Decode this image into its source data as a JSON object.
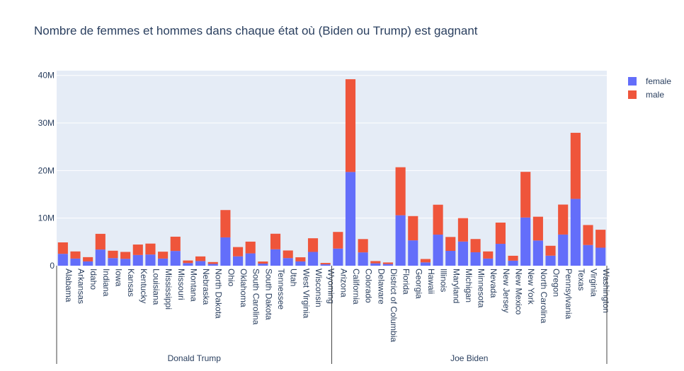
{
  "chart_data": {
    "type": "bar",
    "barmode": "stack",
    "title": "Nombre de femmes et hommes dans chaque état où (Biden ou Trump) est gagnant",
    "xlabel": "",
    "ylabel": "",
    "ylim": [
      0,
      41000000
    ],
    "y_ticks": [
      {
        "value": 0,
        "label": "0"
      },
      {
        "value": 10000000,
        "label": "10M"
      },
      {
        "value": 20000000,
        "label": "20M"
      },
      {
        "value": 30000000,
        "label": "30M"
      },
      {
        "value": 40000000,
        "label": "40M"
      }
    ],
    "grid": true,
    "legend_position": "top-right",
    "groups": [
      {
        "label": "Donald Trump",
        "count": 22
      },
      {
        "label": "Joe Biden",
        "count": 22
      }
    ],
    "categories": [
      "Alabama",
      "Arkansas",
      "Idaho",
      "Indiana",
      "Iowa",
      "Kansas",
      "Kentucky",
      "Louisiana",
      "Mississippi",
      "Missouri",
      "Montana",
      "Nebraska",
      "North Dakota",
      "Ohio",
      "Oklahoma",
      "South Carolina",
      "South Dakota",
      "Tennessee",
      "Utah",
      "West Virginia",
      "Wisconsin",
      "Wyoming",
      "Arizona",
      "California",
      "Colorado",
      "Delaware",
      "District of Columbia",
      "Florida",
      "Georgia",
      "Hawaii",
      "Illinois",
      "Maryland",
      "Michigan",
      "Minnesota",
      "Nevada",
      "New Jersey",
      "New Mexico",
      "New York",
      "North Carolina",
      "Oregon",
      "Pennsylvania",
      "Texas",
      "Virginia",
      "Washington"
    ],
    "series": [
      {
        "name": "female",
        "color": "#636efa",
        "values": [
          2500000,
          1500000,
          900000,
          3400000,
          1600000,
          1450000,
          2250000,
          2350000,
          1500000,
          3100000,
          550000,
          980000,
          380000,
          5950000,
          1970000,
          2590000,
          440000,
          3450000,
          1600000,
          900000,
          2900000,
          290000,
          3600000,
          19700000,
          2800000,
          500000,
          350000,
          10600000,
          5330000,
          700000,
          6530000,
          3120000,
          5080000,
          2820000,
          1500000,
          4600000,
          1060000,
          10130000,
          5300000,
          2110000,
          6550000,
          14050000,
          4350000,
          3790000
        ]
      },
      {
        "name": "male",
        "color": "#ef553b",
        "values": [
          2400000,
          1500000,
          900000,
          3300000,
          1550000,
          1450000,
          2200000,
          2300000,
          1450000,
          3000000,
          550000,
          970000,
          390000,
          5750000,
          1950000,
          2470000,
          440000,
          3270000,
          1600000,
          870000,
          2870000,
          290000,
          3500000,
          19500000,
          2800000,
          470000,
          330000,
          10100000,
          5100000,
          710000,
          6290000,
          2920000,
          4920000,
          2790000,
          1500000,
          4460000,
          1030000,
          9600000,
          5000000,
          2080000,
          6300000,
          13890000,
          4200000,
          3770000
        ]
      }
    ]
  }
}
